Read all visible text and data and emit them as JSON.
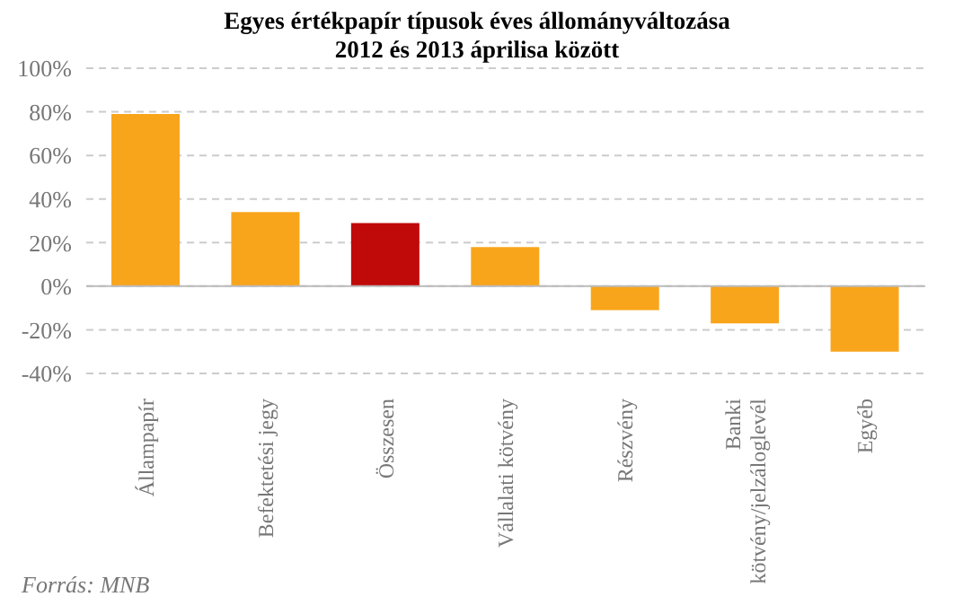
{
  "chart_data": {
    "type": "bar",
    "title": "Egyes értékpapír típusok éves állományváltozása\n2012 és 2013 áprilisa között",
    "categories": [
      "Állampapír",
      "Befektetési jegy",
      "Összesen",
      "Vállalati kötvény",
      "Részvény",
      "Banki kötvény/jelzáloglevél",
      "Egyéb"
    ],
    "values": [
      79,
      34,
      29,
      18,
      -11,
      -17,
      -30
    ],
    "colors": [
      "#f9a51b",
      "#f9a51b",
      "#c00a0a",
      "#f9a51b",
      "#f9a51b",
      "#f9a51b",
      "#f9a51b"
    ],
    "ylim": [
      -40,
      100
    ],
    "yticks": [
      {
        "value": -40,
        "label": "-40%"
      },
      {
        "value": -20,
        "label": "-20%"
      },
      {
        "value": 0,
        "label": "0%"
      },
      {
        "value": 20,
        "label": "20%"
      },
      {
        "value": 40,
        "label": "40%"
      },
      {
        "value": 60,
        "label": "60%"
      },
      {
        "value": 80,
        "label": "80%"
      },
      {
        "value": 100,
        "label": "100%"
      }
    ],
    "grid": "y",
    "annotations": [
      "Forrás: MNB"
    ]
  }
}
